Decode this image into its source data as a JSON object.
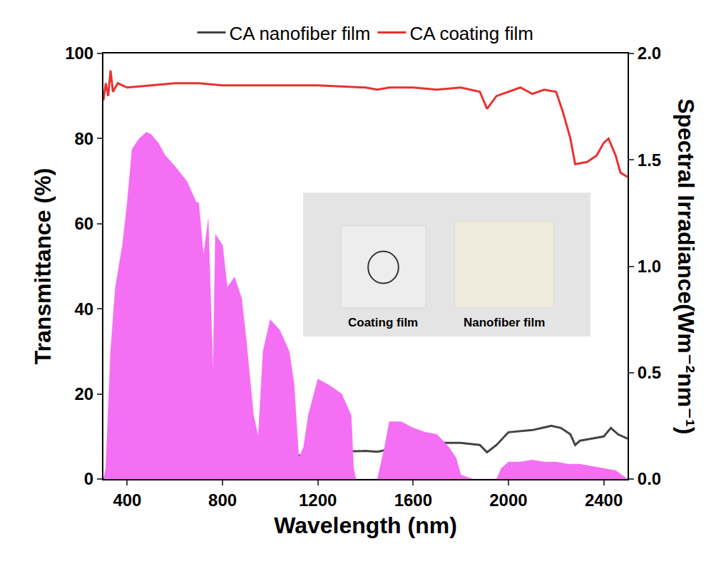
{
  "chart_data": {
    "type": "line",
    "x_label": "Wavelength (nm)",
    "y_label": "Transmittance (%)",
    "y2_label": "Spectral Irradiance(Wm⁻²nm⁻¹)",
    "xlim": [
      300,
      2500
    ],
    "xticks": [
      400,
      800,
      1200,
      1600,
      2000,
      2400
    ],
    "ylim": [
      0,
      100
    ],
    "yticks": [
      0,
      20,
      40,
      60,
      80,
      100
    ],
    "y2lim": [
      0,
      2.0
    ],
    "y2ticks": [
      {
        "value": 0,
        "label": "0.0"
      },
      0.5,
      {
        "value": 1,
        "label": "1.0"
      },
      1.5,
      {
        "value": 2,
        "label": "2.0"
      }
    ],
    "grid": false,
    "legend": "top",
    "series": [
      {
        "type": "area",
        "axis": "y2",
        "color": "#f46ff4",
        "x": [
          300,
          310,
          330,
          350,
          380,
          400,
          420,
          450,
          480,
          500,
          530,
          560,
          600,
          650,
          690,
          700,
          720,
          740,
          760,
          770,
          800,
          820,
          850,
          880,
          900,
          930,
          950,
          970,
          1000,
          1040,
          1080,
          1100,
          1120,
          1140,
          1160,
          1200,
          1250,
          1300,
          1340,
          1350,
          1360,
          1400,
          1450,
          1480,
          1500,
          1550,
          1600,
          1650,
          1700,
          1750,
          1780,
          1800,
          1850,
          1950,
          1970,
          2000,
          2050,
          2100,
          2150,
          2200,
          2250,
          2300,
          2350,
          2400,
          2450,
          2500
        ],
        "values": [
          0.0,
          0.05,
          0.6,
          0.9,
          1.1,
          1.3,
          1.55,
          1.6,
          1.63,
          1.62,
          1.58,
          1.52,
          1.47,
          1.4,
          1.3,
          1.3,
          1.05,
          1.22,
          0.5,
          1.15,
          1.1,
          0.9,
          0.95,
          0.85,
          0.65,
          0.3,
          0.2,
          0.6,
          0.75,
          0.7,
          0.6,
          0.45,
          0.1,
          0.15,
          0.3,
          0.47,
          0.44,
          0.4,
          0.3,
          0.05,
          0.0,
          0.0,
          0.0,
          0.15,
          0.27,
          0.27,
          0.24,
          0.22,
          0.21,
          0.15,
          0.1,
          0.02,
          0.0,
          0.0,
          0.05,
          0.08,
          0.08,
          0.09,
          0.08,
          0.08,
          0.07,
          0.07,
          0.06,
          0.05,
          0.04,
          0.0
        ]
      },
      {
        "name": "CA nanofiber film",
        "type": "line",
        "color": "#444444",
        "x": [
          300,
          350,
          400,
          500,
          600,
          700,
          800,
          820,
          900,
          1000,
          1100,
          1200,
          1300,
          1400,
          1450,
          1500,
          1600,
          1700,
          1800,
          1880,
          1910,
          1950,
          2000,
          2100,
          2180,
          2220,
          2260,
          2280,
          2300,
          2350,
          2400,
          2430,
          2460,
          2500
        ],
        "values": [
          0,
          1.5,
          2.2,
          3,
          3.5,
          4,
          4.3,
          4,
          4.5,
          5,
          5.5,
          5.8,
          6.5,
          6.6,
          6.4,
          7,
          8,
          8.5,
          8.5,
          8,
          6.3,
          8,
          11,
          11.5,
          12.5,
          12,
          10.5,
          8,
          9,
          9.5,
          10,
          12,
          10.5,
          9.5
        ]
      },
      {
        "name": "CA coating film",
        "type": "line",
        "color": "#e8322f",
        "x": [
          300,
          310,
          320,
          330,
          340,
          360,
          400,
          500,
          600,
          700,
          800,
          1000,
          1200,
          1400,
          1450,
          1500,
          1600,
          1700,
          1800,
          1880,
          1910,
          1950,
          2000,
          2050,
          2100,
          2150,
          2200,
          2230,
          2260,
          2280,
          2330,
          2370,
          2400,
          2420,
          2450,
          2470,
          2500
        ],
        "values": [
          89,
          93,
          90,
          96,
          91,
          93,
          92,
          92.5,
          93,
          93,
          92.5,
          92.5,
          92.5,
          92,
          91.5,
          92,
          92,
          91.5,
          92,
          91,
          87,
          90,
          91,
          92,
          90.5,
          91.5,
          91,
          86,
          80,
          74,
          74.5,
          76,
          79,
          80,
          76,
          72,
          71
        ]
      }
    ],
    "annotations": [
      {
        "text": "Coating film"
      },
      {
        "text": "Nanofiber film"
      }
    ]
  }
}
